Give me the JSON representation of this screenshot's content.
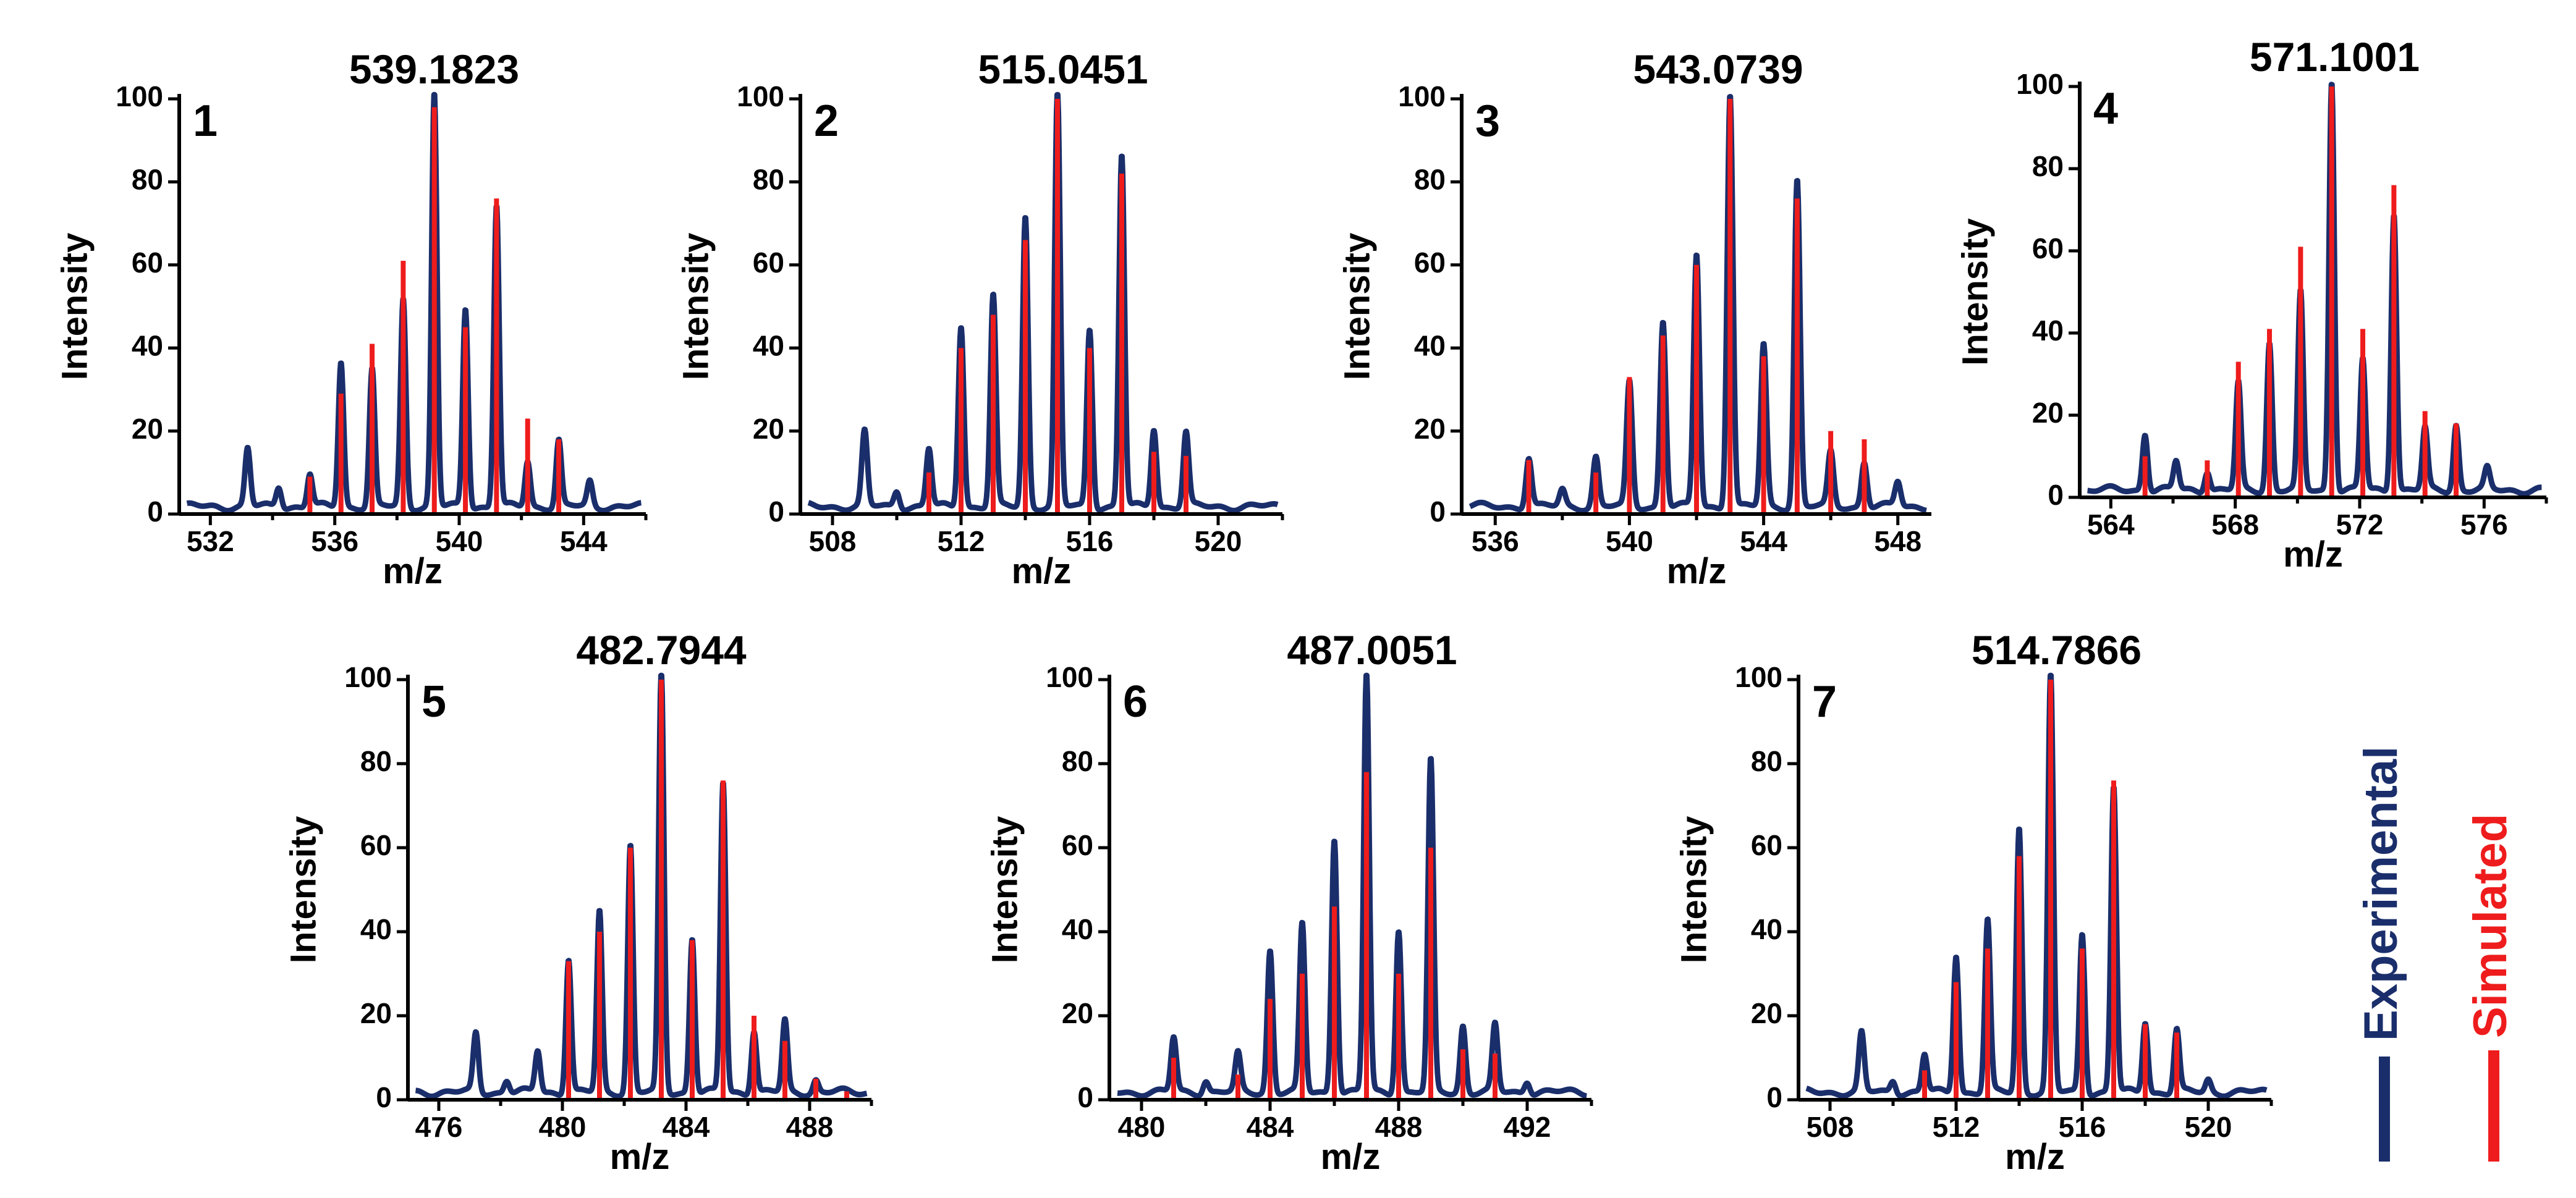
{
  "colors": {
    "experimental": "#1a2e6b",
    "simulated": "#ee1c1c",
    "axis": "#000000"
  },
  "legend": [
    {
      "label": "Experimental",
      "color": "#1a2e6b"
    },
    {
      "label": "Simulated",
      "color": "#ee1c1c"
    }
  ],
  "chart_data": [
    {
      "type": "line",
      "panel": "1",
      "title": "539.1823",
      "xlabel": "m/z",
      "ylabel": "Intensity",
      "xlim": [
        531,
        546
      ],
      "ylim": [
        0,
        100
      ],
      "xticks": [
        532,
        536,
        540,
        544
      ],
      "xtick_labels": [
        "532",
        "536",
        "540",
        "544"
      ],
      "yticks": [
        0,
        20,
        40,
        60,
        80,
        100
      ],
      "ytick_labels": [
        "0",
        "20",
        "40",
        "60",
        "80",
        "100"
      ],
      "experimental_peaks": [
        [
          533.2,
          14
        ],
        [
          534.2,
          5
        ],
        [
          535.2,
          8
        ],
        [
          536.2,
          35
        ],
        [
          537.2,
          33
        ],
        [
          538.2,
          50
        ],
        [
          539.2,
          100
        ],
        [
          540.2,
          48
        ],
        [
          541.2,
          73
        ],
        [
          542.2,
          11
        ],
        [
          543.2,
          16
        ],
        [
          544.2,
          6
        ]
      ],
      "simulated_peaks": [
        [
          535.2,
          9
        ],
        [
          536.2,
          29
        ],
        [
          537.2,
          41
        ],
        [
          538.2,
          61
        ],
        [
          539.2,
          98
        ],
        [
          540.2,
          45
        ],
        [
          541.2,
          76
        ],
        [
          542.2,
          23
        ],
        [
          543.2,
          18
        ]
      ]
    },
    {
      "type": "line",
      "panel": "2",
      "title": "515.0451",
      "xlabel": "m/z",
      "ylabel": "Intensity",
      "xlim": [
        507,
        522
      ],
      "ylim": [
        0,
        100
      ],
      "xticks": [
        508,
        512,
        516,
        520
      ],
      "xtick_labels": [
        "508",
        "512",
        "516",
        "520"
      ],
      "yticks": [
        0,
        20,
        40,
        60,
        80,
        100
      ],
      "ytick_labels": [
        "0",
        "20",
        "40",
        "60",
        "80",
        "100"
      ],
      "experimental_peaks": [
        [
          509,
          18
        ],
        [
          510,
          4
        ],
        [
          511,
          14
        ],
        [
          512,
          44
        ],
        [
          513,
          51
        ],
        [
          514,
          70
        ],
        [
          515,
          100
        ],
        [
          516,
          43
        ],
        [
          517,
          85
        ],
        [
          518,
          19
        ],
        [
          519,
          18
        ]
      ],
      "simulated_peaks": [
        [
          511,
          10
        ],
        [
          512,
          40
        ],
        [
          513,
          48
        ],
        [
          514,
          66
        ],
        [
          515,
          100
        ],
        [
          516,
          40
        ],
        [
          517,
          82
        ],
        [
          518,
          15
        ],
        [
          519,
          14
        ]
      ]
    },
    {
      "type": "line",
      "panel": "3",
      "title": "543.0739",
      "xlabel": "m/z",
      "ylabel": "Intensity",
      "xlim": [
        535,
        549
      ],
      "ylim": [
        0,
        100
      ],
      "xticks": [
        536,
        540,
        544,
        548
      ],
      "xtick_labels": [
        "536",
        "540",
        "544",
        "548"
      ],
      "yticks": [
        0,
        20,
        40,
        60,
        80,
        100
      ],
      "ytick_labels": [
        "0",
        "20",
        "40",
        "60",
        "80",
        "100"
      ],
      "experimental_peaks": [
        [
          537,
          12
        ],
        [
          538,
          4
        ],
        [
          539,
          12
        ],
        [
          540,
          30
        ],
        [
          541,
          45
        ],
        [
          542,
          61
        ],
        [
          543,
          100
        ],
        [
          544,
          39
        ],
        [
          545,
          79
        ],
        [
          546,
          13
        ],
        [
          547,
          11
        ],
        [
          548,
          6
        ]
      ],
      "simulated_peaks": [
        [
          537,
          13
        ],
        [
          539,
          10
        ],
        [
          540,
          33
        ],
        [
          541,
          43
        ],
        [
          542,
          60
        ],
        [
          543,
          100
        ],
        [
          544,
          38
        ],
        [
          545,
          76
        ],
        [
          546,
          20
        ],
        [
          547,
          18
        ]
      ]
    },
    {
      "type": "line",
      "panel": "4",
      "title": "571.1001",
      "xlabel": "m/z",
      "ylabel": "Intensity",
      "xlim": [
        563,
        578
      ],
      "ylim": [
        0,
        100
      ],
      "xticks": [
        564,
        568,
        572,
        576
      ],
      "xtick_labels": [
        "564",
        "568",
        "572",
        "576"
      ],
      "yticks": [
        0,
        20,
        40,
        60,
        80,
        100
      ],
      "ytick_labels": [
        "0",
        "20",
        "40",
        "60",
        "80",
        "100"
      ],
      "experimental_peaks": [
        [
          565.1,
          14
        ],
        [
          566.1,
          7
        ],
        [
          567.1,
          5
        ],
        [
          568.1,
          26
        ],
        [
          569.1,
          36
        ],
        [
          570.1,
          48
        ],
        [
          571.1,
          100
        ],
        [
          572.1,
          32
        ],
        [
          573.1,
          68
        ],
        [
          574.1,
          15
        ],
        [
          575.1,
          16
        ],
        [
          576.1,
          5
        ]
      ],
      "simulated_peaks": [
        [
          565.1,
          10
        ],
        [
          567.1,
          9
        ],
        [
          568.1,
          33
        ],
        [
          569.1,
          41
        ],
        [
          570.1,
          61
        ],
        [
          571.1,
          100
        ],
        [
          572.1,
          41
        ],
        [
          573.1,
          76
        ],
        [
          574.1,
          21
        ],
        [
          575.1,
          18
        ]
      ]
    },
    {
      "type": "line",
      "panel": "5",
      "title": "482.7944",
      "xlabel": "m/z",
      "ylabel": "Intensity",
      "xlim": [
        475,
        490
      ],
      "ylim": [
        0,
        100
      ],
      "xticks": [
        476,
        480,
        484,
        488
      ],
      "xtick_labels": [
        "476",
        "480",
        "484",
        "488"
      ],
      "yticks": [
        0,
        20,
        40,
        60,
        80,
        100
      ],
      "ytick_labels": [
        "0",
        "20",
        "40",
        "60",
        "80",
        "100"
      ],
      "experimental_peaks": [
        [
          477.2,
          14
        ],
        [
          478.2,
          3
        ],
        [
          479.2,
          10
        ],
        [
          480.2,
          32
        ],
        [
          481.2,
          43
        ],
        [
          482.2,
          59
        ],
        [
          483.2,
          100
        ],
        [
          484.2,
          37
        ],
        [
          485.2,
          74
        ],
        [
          486.2,
          15
        ],
        [
          487.2,
          17
        ],
        [
          488.2,
          3
        ]
      ],
      "simulated_peaks": [
        [
          480.2,
          33
        ],
        [
          481.2,
          40
        ],
        [
          482.2,
          60
        ],
        [
          483.2,
          100
        ],
        [
          484.2,
          38
        ],
        [
          485.2,
          76
        ],
        [
          486.2,
          20
        ],
        [
          487.2,
          14
        ],
        [
          488.2,
          5
        ],
        [
          489.2,
          2
        ]
      ]
    },
    {
      "type": "line",
      "panel": "6",
      "title": "487.0051",
      "xlabel": "m/z",
      "ylabel": "Intensity",
      "xlim": [
        479,
        494
      ],
      "ylim": [
        0,
        100
      ],
      "xticks": [
        480,
        484,
        488,
        492
      ],
      "xtick_labels": [
        "480",
        "484",
        "488",
        "492"
      ],
      "yticks": [
        0,
        20,
        40,
        60,
        80,
        100
      ],
      "ytick_labels": [
        "0",
        "20",
        "40",
        "60",
        "80",
        "100"
      ],
      "experimental_peaks": [
        [
          481,
          13
        ],
        [
          482,
          3
        ],
        [
          483,
          9
        ],
        [
          484,
          34
        ],
        [
          485,
          40
        ],
        [
          486,
          61
        ],
        [
          487,
          100
        ],
        [
          488,
          39
        ],
        [
          489,
          79
        ],
        [
          490,
          16
        ],
        [
          491,
          16
        ],
        [
          492,
          3
        ]
      ],
      "simulated_peaks": [
        [
          481,
          10
        ],
        [
          483,
          6
        ],
        [
          484,
          24
        ],
        [
          485,
          30
        ],
        [
          486,
          46
        ],
        [
          487,
          78
        ],
        [
          488,
          30
        ],
        [
          489,
          60
        ],
        [
          490,
          12
        ],
        [
          491,
          11
        ]
      ]
    },
    {
      "type": "line",
      "panel": "7",
      "title": "514.7866",
      "xlabel": "m/z",
      "ylabel": "Intensity",
      "xlim": [
        507,
        522
      ],
      "ylim": [
        0,
        100
      ],
      "xticks": [
        508,
        512,
        516,
        520
      ],
      "xtick_labels": [
        "508",
        "512",
        "516",
        "520"
      ],
      "yticks": [
        0,
        20,
        40,
        60,
        80,
        100
      ],
      "ytick_labels": [
        "0",
        "20",
        "40",
        "60",
        "80",
        "100"
      ],
      "experimental_peaks": [
        [
          509,
          14
        ],
        [
          510,
          3
        ],
        [
          511,
          9
        ],
        [
          512,
          33
        ],
        [
          513,
          41
        ],
        [
          514,
          63
        ],
        [
          515,
          100
        ],
        [
          516,
          38
        ],
        [
          517,
          73
        ],
        [
          518,
          17
        ],
        [
          519,
          15
        ],
        [
          520,
          3
        ]
      ],
      "simulated_peaks": [
        [
          511,
          7
        ],
        [
          512,
          28
        ],
        [
          513,
          36
        ],
        [
          514,
          58
        ],
        [
          515,
          100
        ],
        [
          516,
          36
        ],
        [
          517,
          76
        ],
        [
          518,
          18
        ],
        [
          519,
          16
        ]
      ]
    }
  ]
}
